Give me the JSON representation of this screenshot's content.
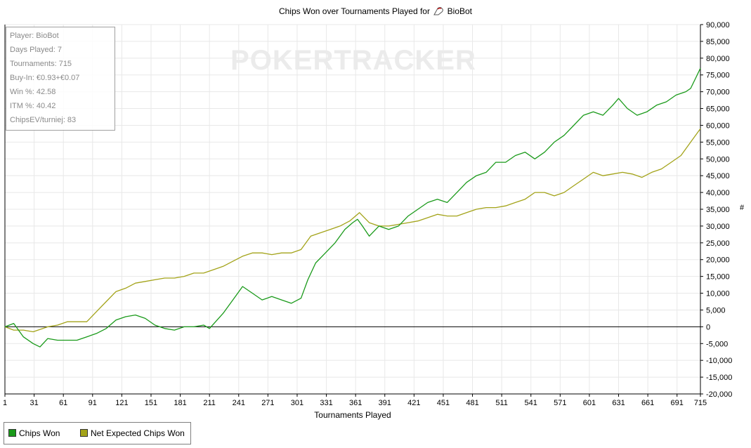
{
  "title": {
    "prefix": "Chips Won over Tournaments Played for",
    "player": "BioBot",
    "icon": "pokertracker-player-icon"
  },
  "watermark": "POKERTRACKER",
  "stats": [
    "Player: BioBot",
    "Days Played: 7",
    "Tournaments: 715",
    "Buy-In: €0.93+€0.07",
    "Win %: 42.58",
    "ITM %: 40.42",
    "ChipsEV/turniej: 83"
  ],
  "legend": [
    {
      "label": "Chips Won",
      "color": "#1a9a1a"
    },
    {
      "label": "Net Expected Chips Won",
      "color": "#a3a319"
    }
  ],
  "y_unit": "#",
  "chart_data": {
    "type": "line",
    "title": "Chips Won over Tournaments Played for BioBot",
    "xlabel": "Tournaments Played",
    "ylabel": "#",
    "xlim": [
      1,
      715
    ],
    "ylim": [
      -20000,
      90000
    ],
    "grid": true,
    "legend_position": "bottom-left",
    "x_ticks": [
      1,
      31,
      61,
      91,
      121,
      151,
      181,
      211,
      241,
      271,
      301,
      331,
      361,
      391,
      421,
      451,
      481,
      511,
      541,
      571,
      601,
      631,
      661,
      691,
      715
    ],
    "y_ticks": [
      -20000,
      -15000,
      -10000,
      -5000,
      0,
      5000,
      10000,
      15000,
      20000,
      25000,
      30000,
      35000,
      40000,
      45000,
      50000,
      55000,
      60000,
      65000,
      70000,
      75000,
      80000,
      85000,
      90000
    ],
    "y_tick_labels": [
      "-20,000",
      "-15,000",
      "-10,000",
      "-5,000",
      "0",
      "5,000",
      "10,000",
      "15,000",
      "20,000",
      "25,000",
      "30,000",
      "35,000",
      "40,000",
      "45,000",
      "50,000",
      "55,000",
      "60,000",
      "65,000",
      "70,000",
      "75,000",
      "80,000",
      "85,000",
      "90,000"
    ],
    "series": [
      {
        "name": "Chips Won",
        "color": "#1a9a1a",
        "x": [
          1,
          10,
          20,
          30,
          37,
          45,
          55,
          65,
          75,
          85,
          95,
          105,
          115,
          125,
          135,
          145,
          155,
          165,
          175,
          185,
          195,
          205,
          211,
          225,
          235,
          245,
          255,
          265,
          275,
          285,
          295,
          305,
          312,
          320,
          330,
          340,
          350,
          358,
          363,
          368,
          375,
          385,
          395,
          405,
          415,
          425,
          435,
          445,
          455,
          465,
          475,
          485,
          495,
          505,
          515,
          525,
          535,
          545,
          555,
          565,
          575,
          585,
          595,
          605,
          615,
          625,
          631,
          640,
          650,
          660,
          670,
          680,
          690,
          700,
          705,
          710,
          715
        ],
        "y": [
          0,
          1000,
          -3000,
          -5000,
          -6000,
          -3500,
          -4000,
          -4000,
          -4000,
          -3000,
          -2000,
          -500,
          2000,
          3000,
          3500,
          2500,
          500,
          -500,
          -1000,
          0,
          0,
          500,
          -500,
          4000,
          8000,
          12000,
          10000,
          8000,
          9000,
          8000,
          7000,
          8500,
          14000,
          19000,
          22000,
          25000,
          29000,
          31000,
          32000,
          30000,
          27000,
          30000,
          29000,
          30000,
          33000,
          35000,
          37000,
          38000,
          37000,
          40000,
          43000,
          45000,
          46000,
          49000,
          49000,
          51000,
          52000,
          50000,
          52000,
          55000,
          57000,
          60000,
          63000,
          64000,
          63000,
          66000,
          68000,
          65000,
          63000,
          64000,
          66000,
          67000,
          69000,
          70000,
          71000,
          74000,
          77000
        ]
      },
      {
        "name": "Net Expected Chips Won",
        "color": "#a3a319",
        "x": [
          1,
          10,
          20,
          30,
          45,
          55,
          65,
          75,
          85,
          95,
          105,
          115,
          125,
          135,
          145,
          155,
          165,
          175,
          185,
          195,
          205,
          215,
          225,
          235,
          245,
          255,
          265,
          275,
          285,
          295,
          305,
          315,
          325,
          335,
          345,
          355,
          365,
          375,
          385,
          395,
          405,
          415,
          425,
          435,
          445,
          455,
          465,
          475,
          485,
          495,
          505,
          515,
          525,
          535,
          545,
          555,
          565,
          575,
          585,
          595,
          605,
          615,
          625,
          635,
          645,
          655,
          665,
          675,
          685,
          695,
          705,
          715
        ],
        "y": [
          0,
          -1000,
          -1000,
          -1500,
          0,
          500,
          1500,
          1500,
          1500,
          4500,
          7500,
          10500,
          11500,
          13000,
          13500,
          14000,
          14500,
          14500,
          15000,
          16000,
          16000,
          17000,
          18000,
          19500,
          21000,
          22000,
          22000,
          21500,
          22000,
          22000,
          23000,
          27000,
          28000,
          29000,
          30000,
          31500,
          34000,
          31000,
          30000,
          30000,
          30500,
          31000,
          31500,
          32500,
          33500,
          33000,
          33000,
          34000,
          35000,
          35500,
          35500,
          36000,
          37000,
          38000,
          40000,
          40000,
          39000,
          40000,
          42000,
          44000,
          46000,
          45000,
          45500,
          46000,
          45500,
          44500,
          46000,
          47000,
          49000,
          51000,
          55000,
          59000
        ]
      }
    ]
  }
}
